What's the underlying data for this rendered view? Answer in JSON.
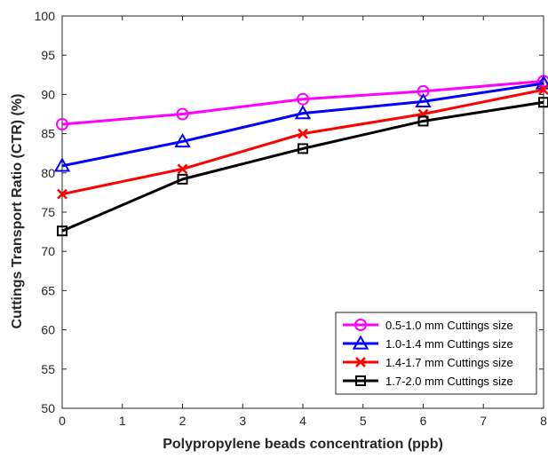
{
  "chart_data": {
    "type": "line",
    "title": "",
    "xlabel": "Polypropylene beads concentration (ppb)",
    "ylabel": "Cuttings Transport Ratio (CTR) (%)",
    "xlim": [
      0,
      8
    ],
    "ylim": [
      50,
      100
    ],
    "xticks": [
      0,
      1,
      2,
      3,
      4,
      5,
      6,
      7,
      8
    ],
    "yticks": [
      50,
      55,
      60,
      65,
      70,
      75,
      80,
      85,
      90,
      95,
      100
    ],
    "grid": false,
    "legend_position": "bottom-right",
    "x": [
      0,
      2,
      4,
      6,
      8
    ],
    "series": [
      {
        "name": "0.5-1.0 mm Cuttings size",
        "values": [
          86.2,
          87.5,
          89.4,
          90.4,
          91.7
        ],
        "color": "#ff00ff",
        "marker": "circle"
      },
      {
        "name": "1.0-1.4 mm Cuttings size",
        "values": [
          80.9,
          84.0,
          87.6,
          89.1,
          91.4
        ],
        "color": "#0000ff",
        "marker": "triangle"
      },
      {
        "name": "1.4-1.7 mm Cuttings size",
        "values": [
          77.3,
          80.5,
          85.0,
          87.5,
          90.6
        ],
        "color": "#ff0000",
        "marker": "x"
      },
      {
        "name": "1.7-2.0 mm Cuttings size",
        "values": [
          72.6,
          79.2,
          83.1,
          86.6,
          89.0
        ],
        "color": "#000000",
        "marker": "square"
      }
    ]
  }
}
